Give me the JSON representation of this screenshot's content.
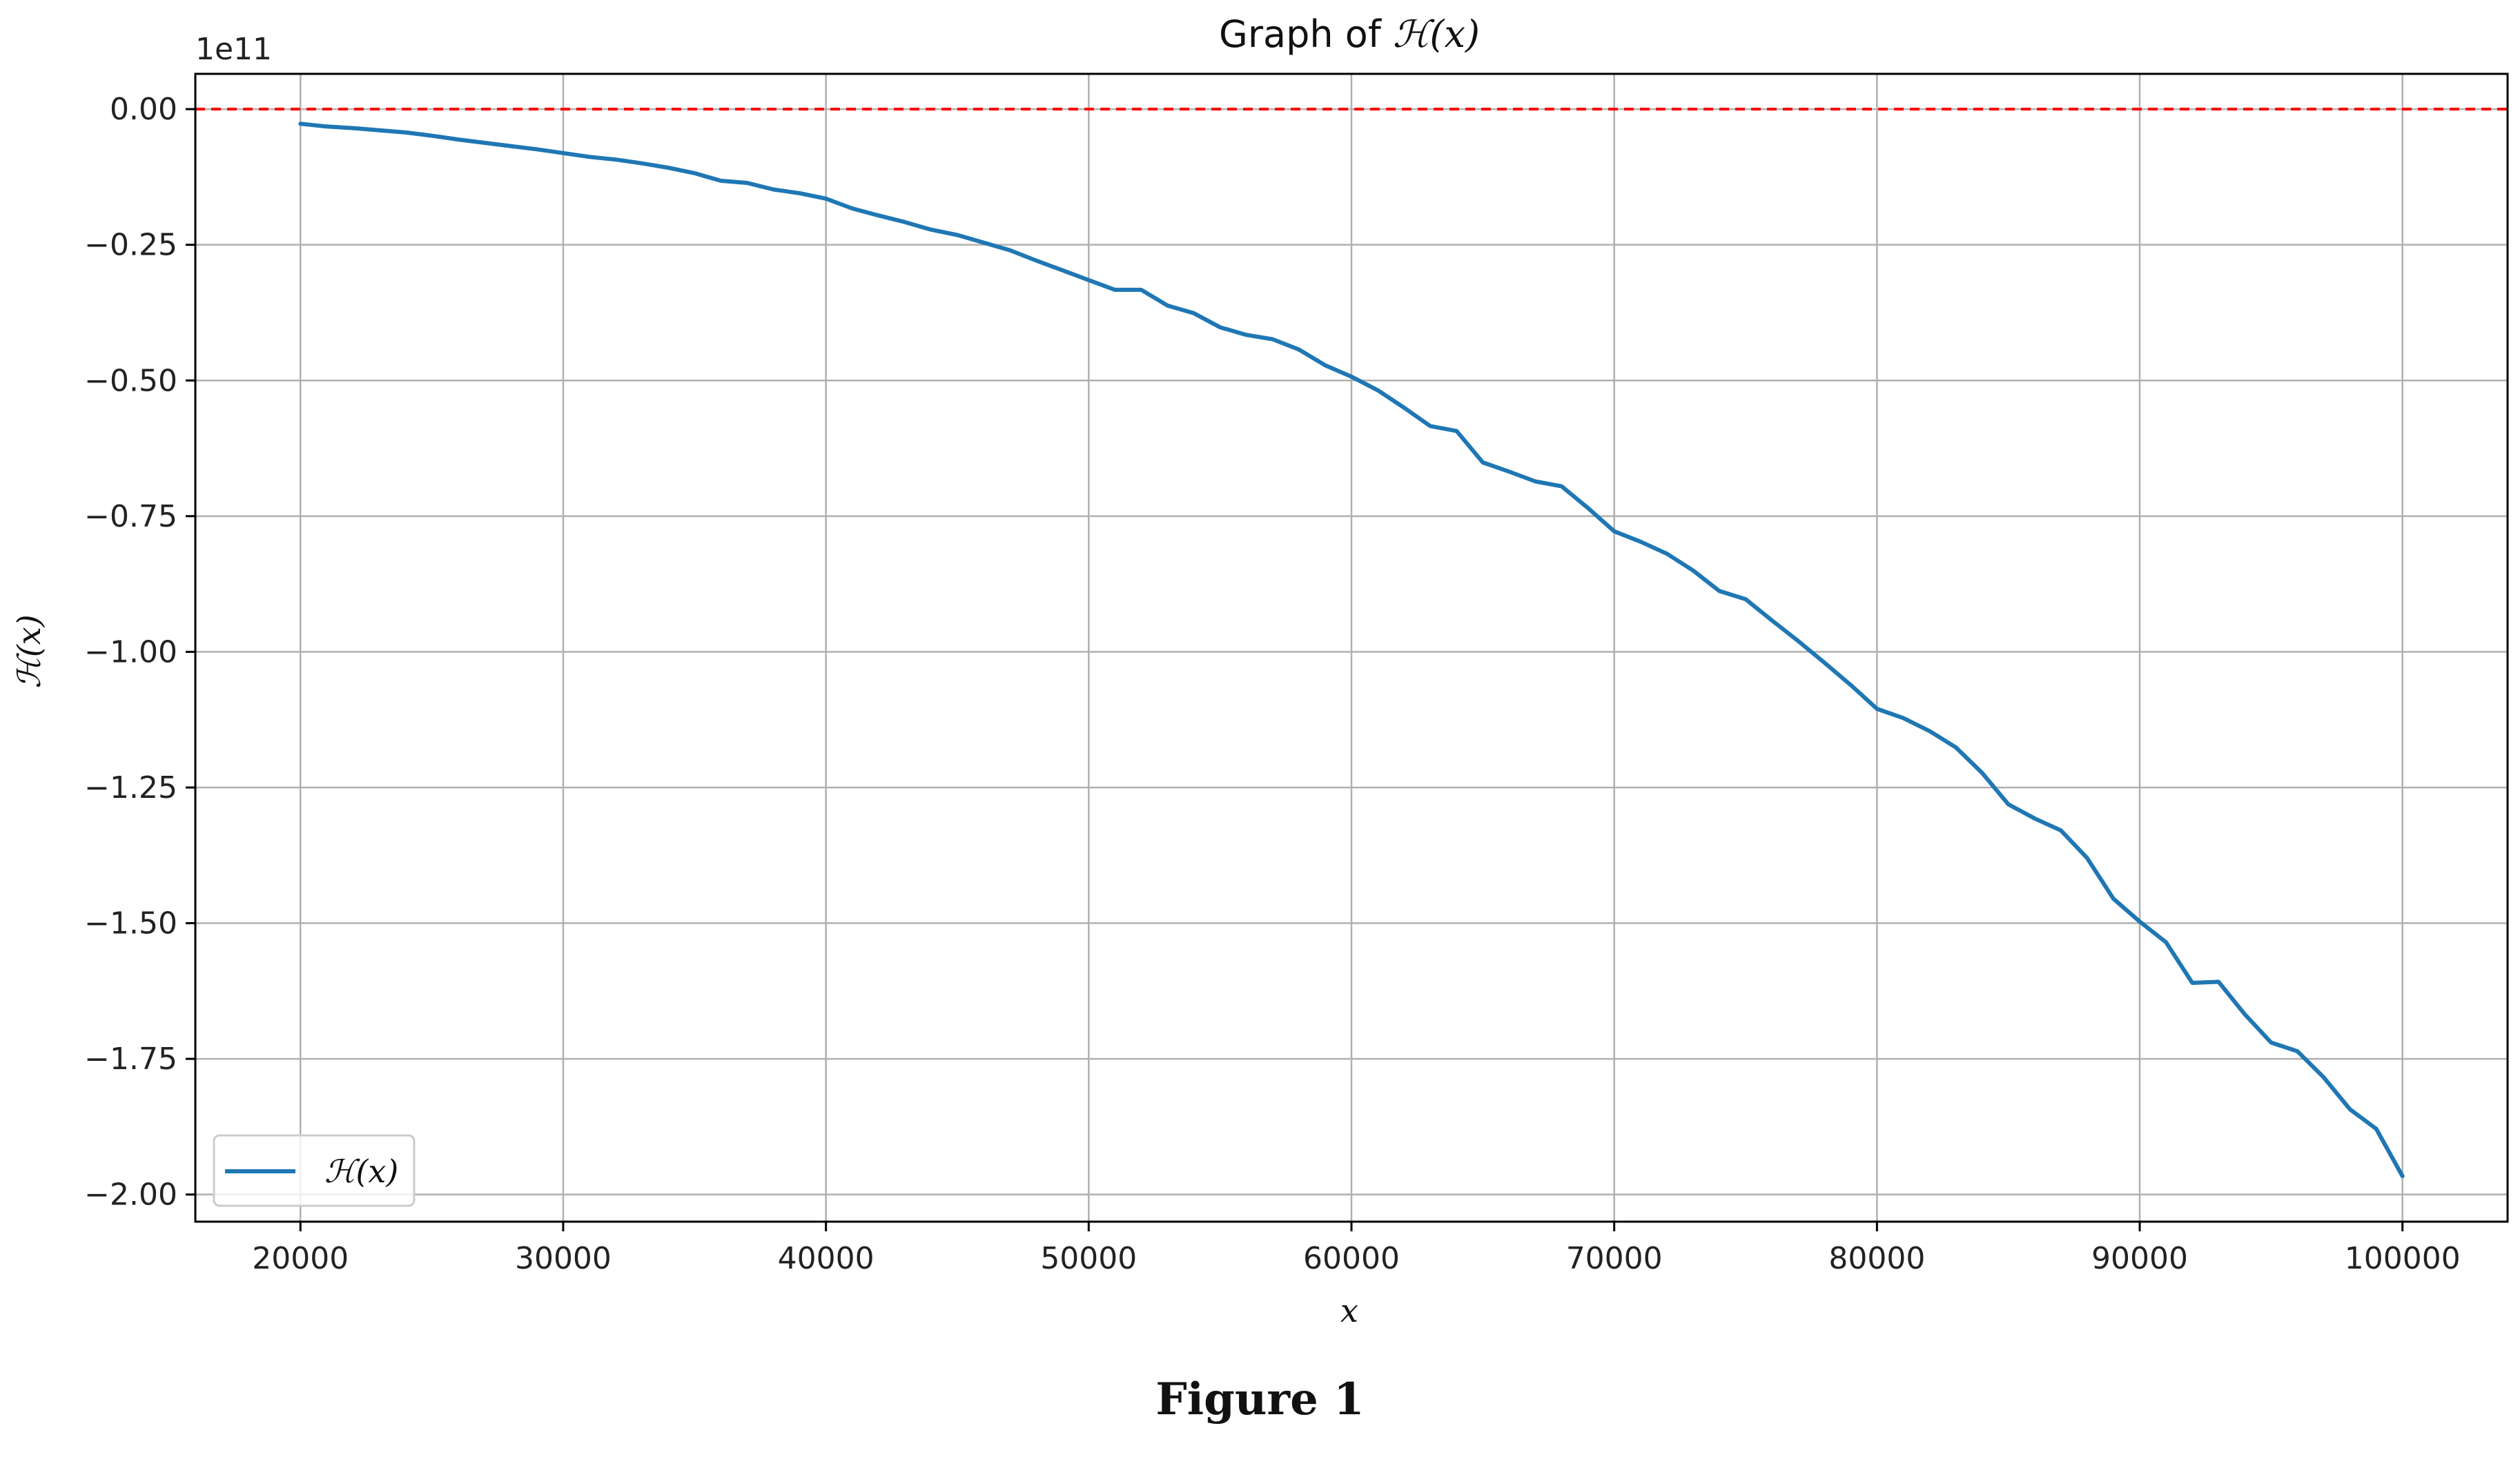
{
  "figure_caption": "Figure 1",
  "colors": {
    "series_line": "#1f77b4",
    "reference_line": "#ff0000",
    "grid": "#b0b0b0",
    "axes": "#000000",
    "background": "#ffffff"
  },
  "chart_data": {
    "type": "line",
    "title_prefix": "Graph of ",
    "title_math": "ℋ(x)",
    "xlabel": "x",
    "ylabel": "ℋ(x)",
    "y_scale_label": "1e11",
    "y_scale_factor": 100000000000,
    "xlim": [
      16000,
      104000
    ],
    "ylim": [
      -2.05,
      0.065
    ],
    "x_ticks": [
      20000,
      30000,
      40000,
      50000,
      60000,
      70000,
      80000,
      90000,
      100000
    ],
    "x_tick_labels": [
      "20000",
      "30000",
      "40000",
      "50000",
      "60000",
      "70000",
      "80000",
      "90000",
      "100000"
    ],
    "y_ticks": [
      0.0,
      -0.25,
      -0.5,
      -0.75,
      -1.0,
      -1.25,
      -1.5,
      -1.75,
      -2.0
    ],
    "y_tick_labels": [
      "0.00",
      "−0.25",
      "−0.50",
      "−0.75",
      "−1.00",
      "−1.25",
      "−1.50",
      "−1.75",
      "−2.00"
    ],
    "grid": true,
    "legend": {
      "position": "lower-left",
      "entries": [
        "ℋ(x)"
      ]
    },
    "reference_line": {
      "y": 0,
      "style": "dashed",
      "color": "#ff0000"
    },
    "series": [
      {
        "name": "ℋ(x)",
        "color": "#1f77b4",
        "x": [
          20000,
          21000,
          22000,
          23000,
          24000,
          25000,
          26000,
          27000,
          28000,
          29000,
          30000,
          31000,
          32000,
          33000,
          34000,
          35000,
          36000,
          37000,
          38000,
          39000,
          40000,
          41000,
          42000,
          43000,
          44000,
          45000,
          46000,
          47000,
          48000,
          49000,
          50000,
          51000,
          52000,
          53000,
          54000,
          55000,
          56000,
          57000,
          58000,
          59000,
          60000,
          61000,
          62000,
          63000,
          64000,
          65000,
          66000,
          67000,
          68000,
          69000,
          70000,
          71000,
          72000,
          73000,
          74000,
          75000,
          76000,
          77000,
          78000,
          79000,
          80000,
          81000,
          82000,
          83000,
          84000,
          85000,
          86000,
          87000,
          88000,
          89000,
          90000,
          91000,
          92000,
          93000,
          94000,
          95000,
          96000,
          97000,
          98000,
          99000,
          100000
        ],
        "y": [
          -0.027,
          -0.032,
          -0.035,
          -0.039,
          -0.043,
          -0.049,
          -0.056,
          -0.062,
          -0.068,
          -0.074,
          -0.081,
          -0.088,
          -0.093,
          -0.1,
          -0.108,
          -0.118,
          -0.132,
          -0.136,
          -0.148,
          -0.155,
          -0.165,
          -0.183,
          -0.196,
          -0.208,
          -0.222,
          -0.232,
          -0.246,
          -0.26,
          -0.279,
          -0.297,
          -0.315,
          -0.333,
          -0.333,
          -0.362,
          -0.376,
          -0.402,
          -0.416,
          -0.424,
          -0.443,
          -0.472,
          -0.493,
          -0.518,
          -0.55,
          -0.584,
          -0.593,
          -0.651,
          -0.668,
          -0.686,
          -0.695,
          -0.735,
          -0.778,
          -0.797,
          -0.819,
          -0.85,
          -0.888,
          -0.903,
          -0.942,
          -0.98,
          -1.02,
          -1.061,
          -1.105,
          -1.122,
          -1.146,
          -1.176,
          -1.223,
          -1.281,
          -1.307,
          -1.329,
          -1.38,
          -1.455,
          -1.497,
          -1.535,
          -1.61,
          -1.608,
          -1.668,
          -1.72,
          -1.736,
          -1.784,
          -1.843,
          -1.879,
          -1.966
        ]
      }
    ]
  }
}
